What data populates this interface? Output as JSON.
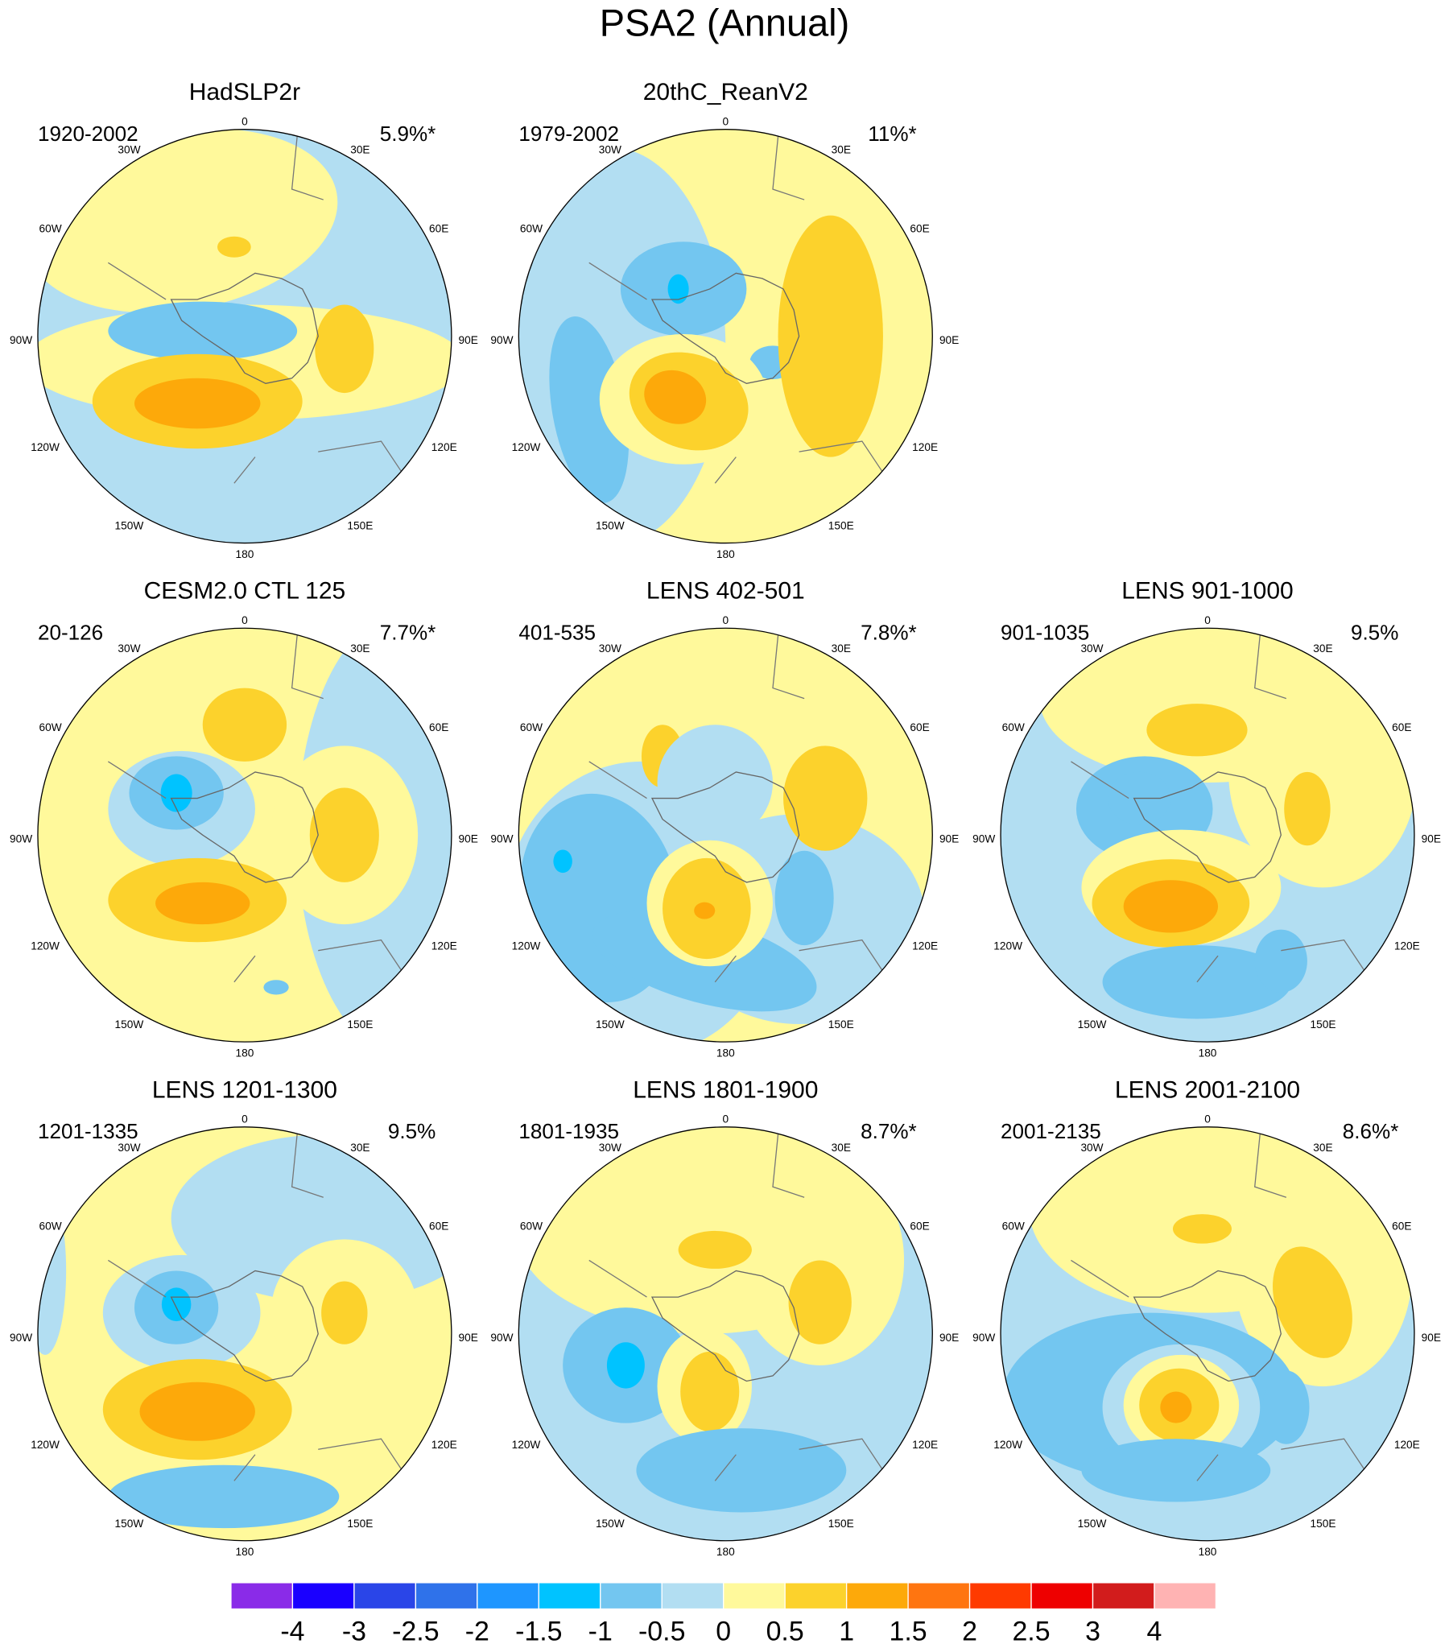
{
  "title": "PSA2 (Annual)",
  "panels": [
    {
      "title": "HadSLP2r",
      "period": "1920-2002",
      "variance": "5.9%*"
    },
    {
      "title": "20thC_ReanV2",
      "period": "1979-2002",
      "variance": "11%*"
    },
    {
      "title": "CESM2.0 CTL 125",
      "period": "20-126",
      "variance": "7.7%*"
    },
    {
      "title": "LENS 402-501",
      "period": "401-535",
      "variance": "7.8%*"
    },
    {
      "title": "LENS 901-1000",
      "period": "901-1035",
      "variance": "9.5%"
    },
    {
      "title": "LENS 1201-1300",
      "period": "1201-1335",
      "variance": "9.5%"
    },
    {
      "title": "LENS 1801-1900",
      "period": "1801-1935",
      "variance": "8.7%*"
    },
    {
      "title": "LENS 2001-2100",
      "period": "2001-2135",
      "variance": "8.6%*"
    }
  ],
  "longitude_labels": [
    "0",
    "30E",
    "60E",
    "90E",
    "120E",
    "150E",
    "180",
    "150W",
    "120W",
    "90W",
    "60W",
    "30W"
  ],
  "colorbar": {
    "levels": [
      -4,
      -3,
      -2.5,
      -2,
      -1.5,
      -1,
      -0.5,
      0,
      0.5,
      1,
      1.5,
      2,
      2.5,
      3,
      4
    ],
    "colors": [
      "#8a2be8",
      "#1a00ff",
      "#2a45e8",
      "#2f72ea",
      "#1e96ff",
      "#00c3ff",
      "#73c6f0",
      "#b2def2",
      "#fff99b",
      "#fcd22c",
      "#fda90a",
      "#ff7510",
      "#ff3a00",
      "#ee0000",
      "#d21c1c",
      "#ffb3b3"
    ]
  }
}
